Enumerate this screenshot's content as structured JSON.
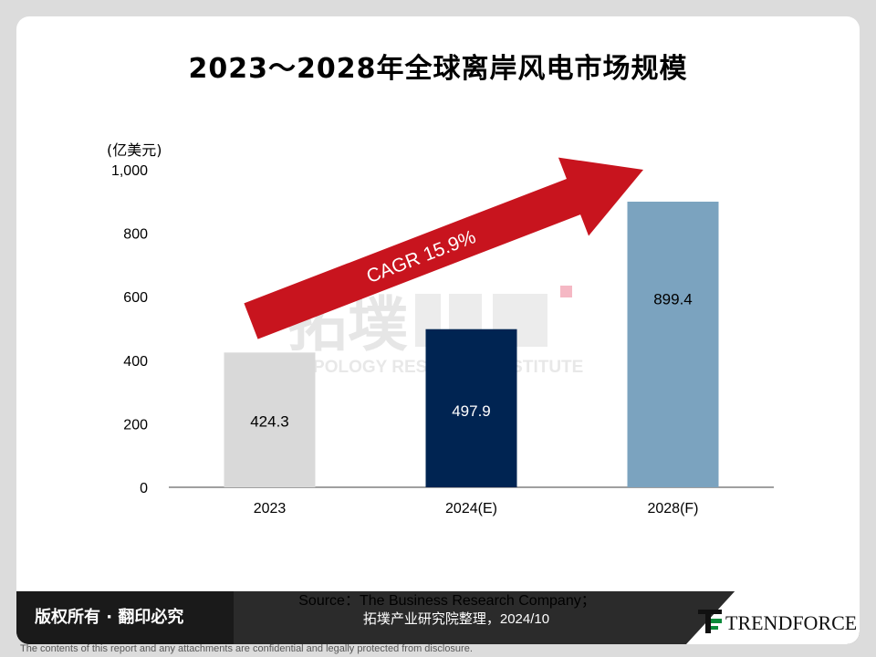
{
  "title": "2023～2028年全球离岸风电市场规模",
  "unit_label": "(亿美元)",
  "cagr_label": "CAGR 15.9%",
  "watermark": {
    "cn": "拓墣",
    "en": "TOPOLOGY RESEARCH INSTITUTE"
  },
  "source_line1": "Source：The Business Research Company；",
  "source_line2": "拓墣产业研究院整理，2024/10",
  "copyright": "版权所有 · 翻印必究",
  "logo_text": "TRENDFORCE",
  "disclaimer": "The contents of this report and any attachments are confidential and legally protected from disclosure.",
  "colors": {
    "arrow": "#c8141e",
    "bar_2023": "#d9d9d9",
    "bar_2024": "#002452",
    "bar_2028": "#7ba3bf",
    "logo_green": "#0a8a3a"
  },
  "chart_data": {
    "type": "bar",
    "categories": [
      "2023",
      "2024(E)",
      "2028(F)"
    ],
    "values": [
      424.3,
      497.9,
      899.4
    ],
    "value_labels": [
      "424.3",
      "497.9",
      "899.4"
    ],
    "ylim": [
      0,
      1000
    ],
    "yticks": [
      0,
      200,
      400,
      600,
      800,
      1000
    ],
    "ytick_labels": [
      "0",
      "200",
      "400",
      "600",
      "800",
      "1,000"
    ],
    "ylabel": "(亿美元)",
    "annotation": "CAGR 15.9%",
    "grid": false
  }
}
